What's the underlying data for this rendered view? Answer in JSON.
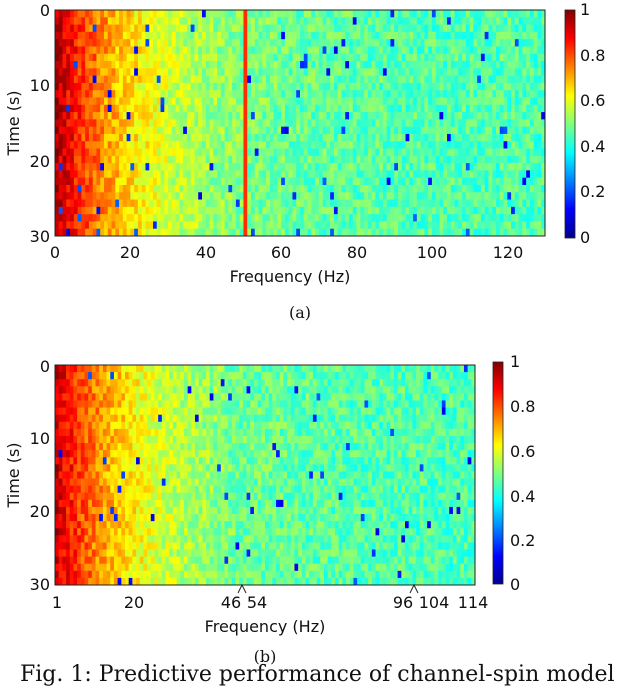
{
  "chart_data": [
    {
      "type": "heatmap",
      "panel_label": "(a)",
      "xlabel": "Frequency (Hz)",
      "ylabel": "Time (s)",
      "xlim": [
        0,
        130
      ],
      "ylim": [
        0,
        30
      ],
      "y_inverted": true,
      "x_ticks": [
        0,
        20,
        40,
        60,
        80,
        100,
        120
      ],
      "y_ticks": [
        0,
        10,
        20,
        30
      ],
      "colorbar": {
        "colormap": "jet",
        "range": [
          0,
          1
        ],
        "ticks": [
          0,
          0.2,
          0.4,
          0.6,
          0.8,
          1
        ]
      },
      "grid": {
        "cols": 130,
        "rows": 31
      },
      "intensity_profile": "values decay from ~0.95 near 0 Hz to ~0.45 at 130 Hz with random noise; bright stripe at 50 Hz",
      "highlight_line": {
        "frequency": 50,
        "value": 0.83
      }
    },
    {
      "type": "heatmap",
      "panel_label": "(b)",
      "xlabel": "Frequency (Hz)",
      "ylabel": "Time (s)",
      "xlim": [
        1,
        114
      ],
      "ylim": [
        0,
        30
      ],
      "y_inverted": true,
      "x_tick_labels": [
        "1",
        "20",
        "46",
        "54",
        "96",
        "104",
        "114"
      ],
      "y_ticks": [
        0,
        10,
        20,
        30
      ],
      "colorbar": {
        "colormap": "jet",
        "range": [
          0,
          1
        ],
        "ticks": [
          0,
          0.2,
          0.4,
          0.6,
          0.8,
          1
        ]
      },
      "grid": {
        "cols": 114,
        "rows": 31
      },
      "intensity_profile": "same spectra with 47-53 Hz and 97-103 Hz bands removed; values decay from ~0.95 to ~0.45"
    }
  ],
  "caption_text": "Fig. 1: Predictive performance of channel-spin model"
}
